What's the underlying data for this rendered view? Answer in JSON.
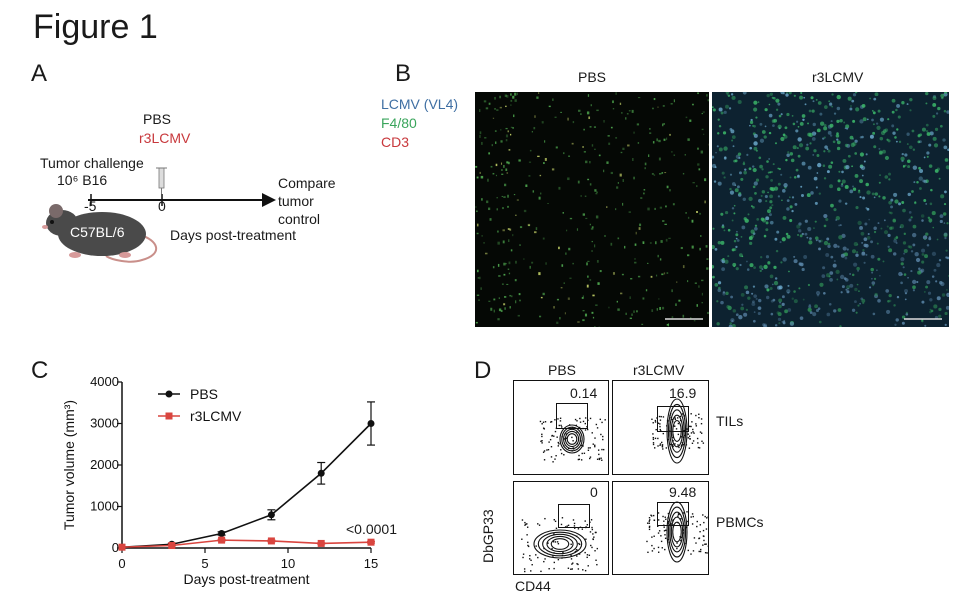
{
  "figure": {
    "title": "Figure 1"
  },
  "panel_a": {
    "letter": "A",
    "legend": {
      "pbs": "PBS",
      "r3lcmv": "r3LCMV"
    },
    "challenge_title": "Tumor challenge",
    "challenge_detail": "10⁶ B16",
    "mouse_label": "C57BL/6",
    "tick_labels": [
      "-5",
      "0"
    ],
    "arrow_label_lines": [
      "Compare",
      "tumor",
      "control"
    ],
    "axis_title": "Days post-treatment",
    "colors": {
      "pbs": "#1a1a1a",
      "r3lcmv": "#c8383c"
    },
    "icons": [
      "mouse-icon",
      "syringe-icon",
      "arrow-icon"
    ]
  },
  "panel_b": {
    "letter": "B",
    "stains": [
      {
        "label": "LCMV (VL4)",
        "color": "#3f6fa3"
      },
      {
        "label": "F4/80",
        "color": "#3aa55c"
      },
      {
        "label": "CD3",
        "color": "#c8383c"
      }
    ],
    "columns": [
      "PBS",
      "r3LCMV"
    ]
  },
  "panel_c": {
    "letter": "C",
    "pvalue": "<0.0001",
    "chart_data": {
      "type": "line",
      "xlabel": "Days post-treatment",
      "ylabel": "Tumor volume (mm³)",
      "xlim": [
        0,
        15
      ],
      "ylim": [
        0,
        4000
      ],
      "xticks": [
        0,
        5,
        10,
        15
      ],
      "yticks": [
        0,
        1000,
        2000,
        3000,
        4000
      ],
      "legend_position": "top-center",
      "series": [
        {
          "name": "PBS",
          "color": "#111111",
          "marker": "circle",
          "x": [
            0,
            3,
            6,
            9,
            12,
            15
          ],
          "y": [
            20,
            90,
            350,
            800,
            1800,
            3000
          ],
          "err": [
            0,
            20,
            40,
            120,
            260,
            520
          ]
        },
        {
          "name": "r3LCMV",
          "color": "#d9453f",
          "marker": "square",
          "x": [
            0,
            3,
            6,
            9,
            12,
            15
          ],
          "y": [
            20,
            60,
            190,
            170,
            110,
            140
          ],
          "err": [
            0,
            10,
            20,
            20,
            15,
            20
          ]
        }
      ]
    }
  },
  "panel_d": {
    "letter": "D",
    "columns": [
      "PBS",
      "r3LCMV"
    ],
    "rows": [
      "TILs",
      "PBMCs"
    ],
    "values": [
      [
        "0.14",
        "16.9"
      ],
      [
        "0",
        "9.48"
      ]
    ],
    "xlabel": "CD44",
    "ylabel": "DbGP33"
  }
}
